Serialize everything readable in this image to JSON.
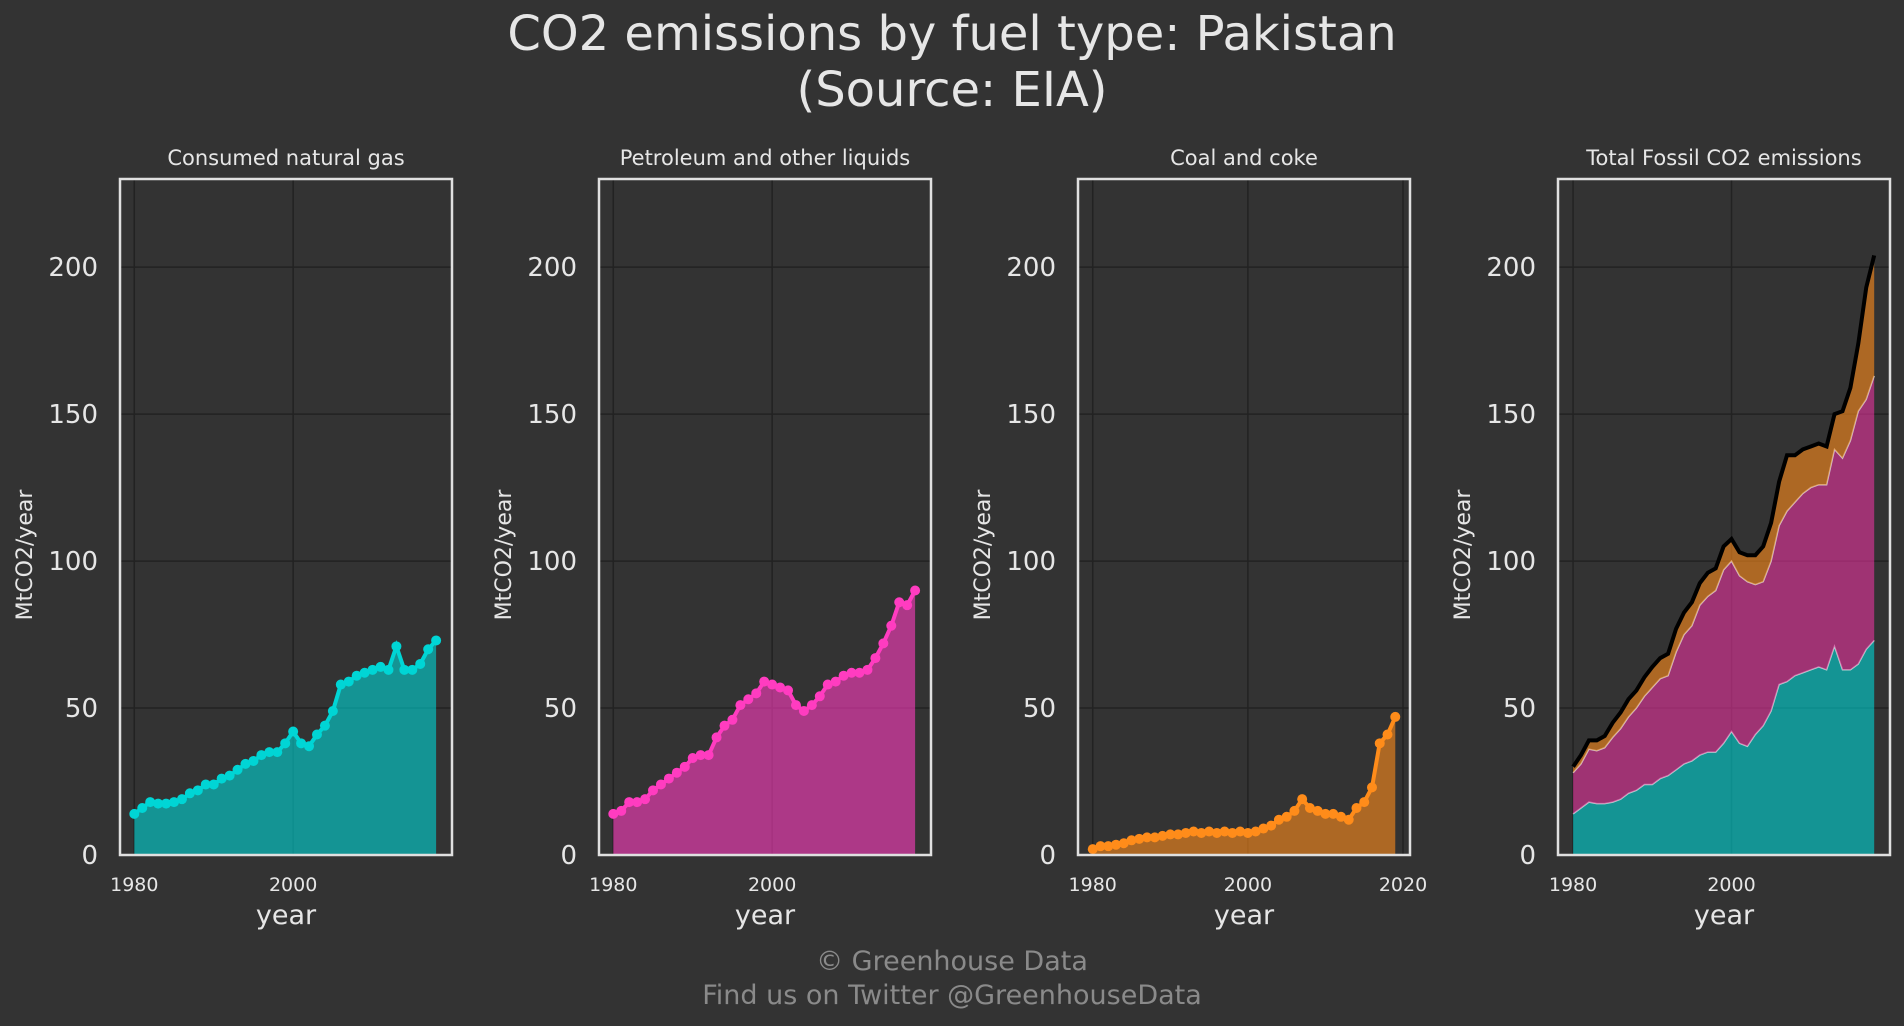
{
  "title": [
    "CO2 emissions by fuel type: Pakistan",
    "(Source: EIA)"
  ],
  "footer": [
    "© Greenhouse Data",
    "Find us on Twitter @GreenhouseData"
  ],
  "chart_data": [
    {
      "type": "area",
      "title": "Consumed natural gas",
      "xlabel": "year",
      "ylabel": "MtCO2/year",
      "x": [
        1980,
        1981,
        1982,
        1983,
        1984,
        1985,
        1986,
        1987,
        1988,
        1989,
        1990,
        1991,
        1992,
        1993,
        1994,
        1995,
        1996,
        1997,
        1998,
        1999,
        2000,
        2001,
        2002,
        2003,
        2004,
        2005,
        2006,
        2007,
        2008,
        2009,
        2010,
        2011,
        2012,
        2013,
        2014,
        2015,
        2016,
        2017,
        2018
      ],
      "series": [
        {
          "name": "Consumed natural gas",
          "color": "#00d5d5",
          "values": [
            14,
            16,
            18,
            17.5,
            17.5,
            18,
            19,
            21,
            22,
            24,
            24,
            26,
            27,
            29,
            31,
            32,
            34,
            35,
            35,
            38,
            42,
            38,
            37,
            41,
            44,
            49,
            58,
            59,
            61,
            62,
            63,
            64,
            63,
            71,
            63,
            63,
            65,
            70,
            73
          ]
        }
      ],
      "xlim": [
        1978.2,
        2020
      ],
      "ylim": [
        0,
        230
      ],
      "xticks": [
        1980,
        2000
      ],
      "yticks": [
        0,
        50,
        100,
        150,
        200
      ],
      "grid": true
    },
    {
      "type": "area",
      "title": "Petroleum and other liquids",
      "xlabel": "year",
      "ylabel": "MtCO2/year",
      "x": [
        1980,
        1981,
        1982,
        1983,
        1984,
        1985,
        1986,
        1987,
        1988,
        1989,
        1990,
        1991,
        1992,
        1993,
        1994,
        1995,
        1996,
        1997,
        1998,
        1999,
        2000,
        2001,
        2002,
        2003,
        2004,
        2005,
        2006,
        2007,
        2008,
        2009,
        2010,
        2011,
        2012,
        2013,
        2014,
        2015,
        2016,
        2017,
        2018
      ],
      "series": [
        {
          "name": "Petroleum and other liquids",
          "color": "#ff3cc0",
          "values": [
            14,
            15,
            18,
            18,
            19,
            22,
            24,
            26,
            28,
            30,
            33,
            34,
            34,
            40,
            44,
            46,
            51,
            53,
            55,
            59,
            58,
            57,
            56,
            51,
            49,
            51,
            54,
            58,
            59,
            61,
            62,
            62,
            63,
            67,
            72,
            78,
            86,
            85,
            90
          ]
        }
      ],
      "xlim": [
        1978.2,
        2020
      ],
      "ylim": [
        0,
        230
      ],
      "xticks": [
        1980,
        2000
      ],
      "yticks": [
        0,
        50,
        100,
        150,
        200
      ],
      "grid": true
    },
    {
      "type": "area",
      "title": "Coal and coke",
      "xlabel": "year",
      "ylabel": "MtCO2/year",
      "x": [
        1980,
        1981,
        1982,
        1983,
        1984,
        1985,
        1986,
        1987,
        1988,
        1989,
        1990,
        1991,
        1992,
        1993,
        1994,
        1995,
        1996,
        1997,
        1998,
        1999,
        2000,
        2001,
        2002,
        2003,
        2004,
        2005,
        2006,
        2007,
        2008,
        2009,
        2010,
        2011,
        2012,
        2013,
        2014,
        2015,
        2016,
        2017,
        2018,
        2019
      ],
      "series": [
        {
          "name": "Coal and coke",
          "color": "#ff8c1a",
          "values": [
            2,
            3,
            3,
            3.5,
            4,
            5,
            5.5,
            6,
            6,
            6.5,
            7,
            7,
            7.5,
            8,
            7.5,
            8,
            7.5,
            8,
            7.5,
            8,
            7.5,
            8,
            9,
            10,
            12,
            13,
            15,
            19,
            16,
            15,
            14,
            14,
            13,
            12,
            16,
            18,
            23,
            38,
            41,
            47
          ]
        }
      ],
      "xlim": [
        1978.1,
        2020.9
      ],
      "ylim": [
        0,
        230
      ],
      "xticks": [
        1980,
        2000,
        2020
      ],
      "yticks": [
        0,
        50,
        100,
        150,
        200
      ],
      "grid": true
    },
    {
      "type": "stacked_area",
      "title": "Total Fossil CO2 emissions",
      "xlabel": "year",
      "ylabel": "MtCO2/year",
      "x": [
        1980,
        1981,
        1982,
        1983,
        1984,
        1985,
        1986,
        1987,
        1988,
        1989,
        1990,
        1991,
        1992,
        1993,
        1994,
        1995,
        1996,
        1997,
        1998,
        1999,
        2000,
        2001,
        2002,
        2003,
        2004,
        2005,
        2006,
        2007,
        2008,
        2009,
        2010,
        2011,
        2012,
        2013,
        2014,
        2015,
        2016,
        2017,
        2018
      ],
      "series": [
        {
          "name": "Consumed natural gas",
          "color": "#00d5d5",
          "values": [
            14,
            16,
            18,
            17.5,
            17.5,
            18,
            19,
            21,
            22,
            24,
            24,
            26,
            27,
            29,
            31,
            32,
            34,
            35,
            35,
            38,
            42,
            38,
            37,
            41,
            44,
            49,
            58,
            59,
            61,
            62,
            63,
            64,
            63,
            71,
            63,
            63,
            65,
            70,
            73
          ]
        },
        {
          "name": "Petroleum and other liquids",
          "color": "#e8339f",
          "values": [
            14,
            15,
            18,
            18,
            19,
            22,
            24,
            26,
            28,
            30,
            33,
            34,
            34,
            40,
            44,
            46,
            51,
            53,
            55,
            59,
            58,
            57,
            56,
            51,
            49,
            51,
            54,
            58,
            59,
            61,
            62,
            62,
            63,
            67,
            72,
            78,
            86,
            85,
            90
          ]
        },
        {
          "name": "Coal and coke",
          "color": "#ff8c1a",
          "values": [
            2,
            3,
            3,
            3.5,
            4,
            5,
            5.5,
            6,
            6,
            6.5,
            7,
            7,
            7.5,
            8,
            7.5,
            8,
            7.5,
            8,
            7.5,
            8,
            7.5,
            8,
            9,
            10,
            12,
            13,
            15,
            19,
            16,
            15,
            14,
            14,
            13,
            12,
            16,
            18,
            23,
            38,
            41
          ]
        }
      ],
      "total_color": "#000000",
      "xlim": [
        1978.1,
        2020
      ],
      "ylim": [
        0,
        230
      ],
      "xticks": [
        1980,
        2000
      ],
      "yticks": [
        0,
        50,
        100,
        150,
        200
      ],
      "grid": true
    }
  ]
}
